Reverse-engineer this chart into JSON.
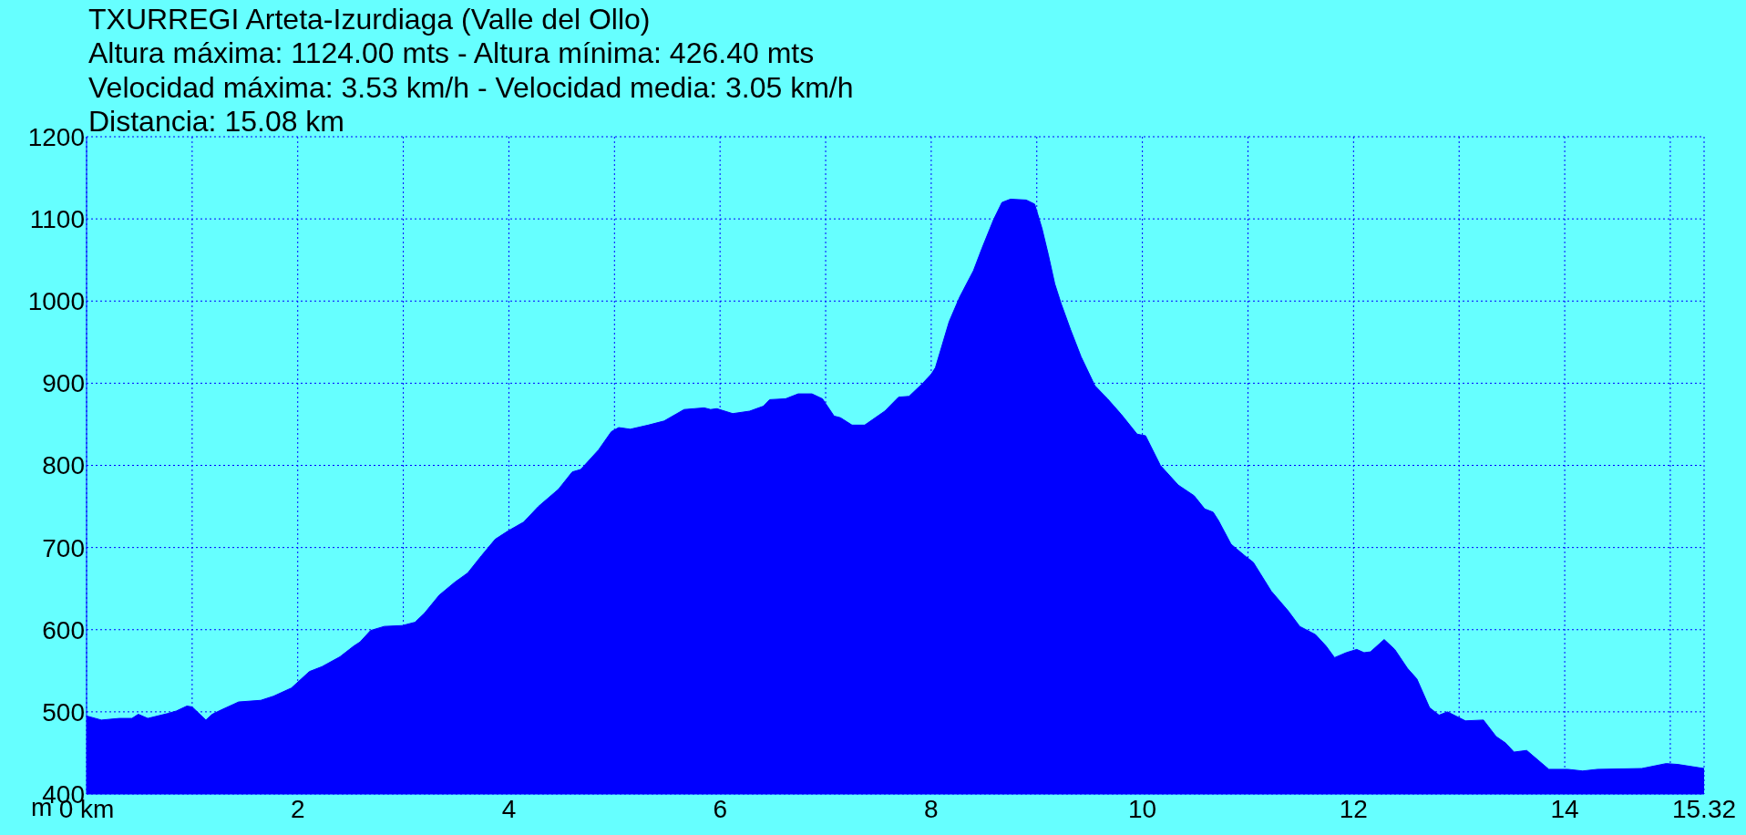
{
  "chart_data": {
    "type": "area",
    "title": "TXURREGI Arteta-Izurdiaga (Valle del Ollo)",
    "annotations": [
      "Altura máxima: 1124.00 mts - Altura mínima: 426.40 mts",
      "Velocidad máxima: 3.53 km/h - Velocidad media: 3.05 km/h",
      "Distancia: 15.08 km"
    ],
    "ylabel": "m",
    "x": [
      0,
      0.14,
      0.31,
      0.43,
      0.49,
      0.58,
      0.77,
      0.85,
      0.95,
      1.0,
      1.13,
      1.19,
      1.27,
      1.44,
      1.65,
      1.77,
      1.94,
      2.11,
      2.23,
      2.4,
      2.53,
      2.59,
      2.69,
      2.82,
      2.99,
      3.11,
      3.2,
      3.34,
      3.49,
      3.61,
      3.74,
      3.87,
      3.99,
      4.14,
      4.28,
      4.47,
      4.6,
      4.68,
      4.85,
      4.97,
      5.04,
      5.15,
      5.32,
      5.47,
      5.66,
      5.85,
      5.91,
      5.97,
      6.12,
      6.28,
      6.41,
      6.47,
      6.62,
      6.74,
      6.87,
      6.97,
      7.08,
      7.14,
      7.25,
      7.37,
      7.56,
      7.69,
      7.79,
      7.92,
      8.0,
      8.04,
      8.17,
      8.27,
      8.4,
      8.48,
      8.59,
      8.67,
      8.75,
      8.9,
      8.98,
      9.05,
      9.11,
      9.17,
      9.23,
      9.32,
      9.42,
      9.55,
      9.67,
      9.8,
      9.95,
      10.03,
      10.17,
      10.34,
      10.49,
      10.59,
      10.67,
      10.72,
      10.84,
      10.97,
      11.05,
      11.22,
      11.38,
      11.49,
      11.64,
      11.74,
      11.82,
      11.93,
      12.03,
      12.1,
      12.16,
      12.29,
      12.39,
      12.51,
      12.6,
      12.72,
      12.81,
      12.89,
      13.06,
      13.23,
      13.35,
      13.44,
      13.52,
      13.64,
      13.85,
      14.03,
      14.17,
      14.31,
      14.73,
      14.96,
      15.07,
      15.32
    ],
    "series": [
      {
        "color": "#0000ff",
        "values": [
          495,
          490,
          492,
          492,
          497,
          492,
          498,
          501,
          507,
          506,
          490,
          497,
          502,
          512,
          514,
          519,
          529,
          549,
          555,
          567,
          580,
          585,
          599,
          604,
          605,
          609,
          620,
          642,
          658,
          669,
          690,
          710,
          720,
          731,
          750,
          771,
          792,
          795,
          819,
          841,
          846,
          844,
          849,
          854,
          868,
          870,
          868,
          869,
          863,
          866,
          872,
          880,
          881,
          887,
          887,
          881,
          860,
          858,
          849,
          849,
          866,
          883,
          884,
          900,
          911,
          919,
          975,
          1005,
          1037,
          1064,
          1099,
          1120,
          1124,
          1123,
          1118,
          1088,
          1056,
          1021,
          997,
          965,
          932,
          897,
          881,
          862,
          838,
          836,
          800,
          776,
          763,
          747,
          743,
          733,
          704,
          690,
          682,
          647,
          623,
          604,
          594,
          580,
          566,
          572,
          576,
          572,
          573,
          588,
          576,
          553,
          540,
          505,
          496,
          500,
          489,
          490,
          470,
          462,
          451,
          453,
          430,
          430,
          428,
          430,
          431,
          437,
          436,
          431
        ]
      }
    ],
    "xlim": [
      0,
      15.32
    ],
    "xticks": [
      {
        "value": 0,
        "label": "0 km"
      },
      {
        "value": 1,
        "label": null
      },
      2,
      {
        "value": 3,
        "label": null
      },
      4,
      {
        "value": 5,
        "label": null
      },
      6,
      {
        "value": 7,
        "label": null
      },
      8,
      {
        "value": 9,
        "label": null
      },
      10,
      {
        "value": 11,
        "label": null
      },
      12,
      {
        "value": 13,
        "label": null
      },
      14,
      {
        "value": 15,
        "label": null
      },
      15.32
    ],
    "ylim": [
      400,
      1200
    ],
    "yticks": [
      400,
      500,
      600,
      700,
      800,
      900,
      1000,
      1100,
      1200
    ],
    "grid": true
  }
}
